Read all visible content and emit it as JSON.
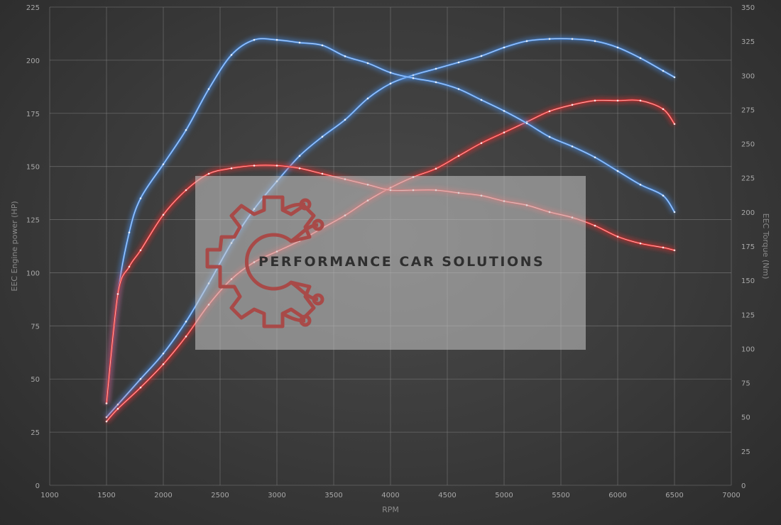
{
  "chart_data": {
    "type": "line",
    "xlabel": "RPM",
    "ylabel_left": "EEC Engine power (HP)",
    "ylabel_right": "EEC Torque (Nm)",
    "xlim": [
      1000,
      7000
    ],
    "ylim_left": [
      0,
      225
    ],
    "ylim_right": [
      0,
      350
    ],
    "x_ticks": [
      1000,
      1500,
      2000,
      2500,
      3000,
      3500,
      4000,
      4500,
      5000,
      5500,
      6000,
      6500,
      7000
    ],
    "y_left_ticks": [
      0,
      25,
      50,
      75,
      100,
      125,
      150,
      175,
      200,
      225
    ],
    "y_right_ticks": [
      0,
      25,
      50,
      75,
      100,
      125,
      150,
      175,
      200,
      225,
      250,
      275,
      300,
      325,
      350
    ],
    "grid": true,
    "series": [
      {
        "axis": "left",
        "color": "#4a8fe8",
        "x": [
          1500,
          1600,
          1800,
          2000,
          2200,
          2400,
          2600,
          2800,
          3000,
          3200,
          3400,
          3600,
          3800,
          4000,
          4200,
          4400,
          4600,
          4800,
          5000,
          5200,
          5400,
          5600,
          5800,
          6000,
          6200,
          6400,
          6500
        ],
        "y": [
          32,
          38,
          50,
          62,
          77,
          95,
          114,
          130,
          143,
          155,
          164,
          172,
          182,
          189,
          193,
          196,
          199,
          202,
          206,
          209,
          210,
          210,
          209,
          206,
          201,
          195,
          192
        ]
      },
      {
        "axis": "left",
        "color": "#e83030",
        "x": [
          1500,
          1600,
          1800,
          2000,
          2200,
          2400,
          2600,
          2800,
          3000,
          3200,
          3400,
          3600,
          3800,
          4000,
          4200,
          4400,
          4600,
          4800,
          5000,
          5200,
          5400,
          5600,
          5800,
          6000,
          6200,
          6400,
          6500
        ],
        "y": [
          30,
          36,
          46,
          57,
          70,
          85,
          97,
          105,
          110,
          115,
          121,
          127,
          134,
          140,
          145,
          149,
          155,
          161,
          166,
          171,
          176,
          179,
          181,
          181,
          181,
          177,
          170
        ]
      },
      {
        "axis": "right",
        "color": "#4a8fe8",
        "x": [
          1500,
          1600,
          1700,
          1800,
          2000,
          2200,
          2400,
          2600,
          2800,
          3000,
          3200,
          3400,
          3600,
          3800,
          4000,
          4200,
          4400,
          4600,
          4800,
          5000,
          5200,
          5400,
          5600,
          5800,
          6000,
          6200,
          6400,
          6500
        ],
        "y": [
          60,
          140,
          185,
          210,
          235,
          260,
          290,
          315,
          326,
          326,
          324,
          322,
          314,
          309,
          302,
          298,
          295,
          290,
          282,
          274,
          265,
          255,
          248,
          240,
          230,
          220,
          212,
          200
        ]
      },
      {
        "axis": "right",
        "color": "#e83030",
        "x": [
          1500,
          1600,
          1700,
          1800,
          2000,
          2200,
          2400,
          2600,
          2800,
          3000,
          3200,
          3400,
          3600,
          3800,
          4000,
          4200,
          4400,
          4600,
          4800,
          5000,
          5200,
          5400,
          5600,
          5800,
          6000,
          6200,
          6400,
          6500
        ],
        "y": [
          60,
          140,
          160,
          172,
          198,
          216,
          228,
          232,
          234,
          234,
          232,
          228,
          224,
          220,
          216,
          216,
          216,
          214,
          212,
          208,
          205,
          200,
          196,
          190,
          182,
          177,
          174,
          172
        ]
      }
    ]
  },
  "watermark": {
    "text": "PERFORMANCE CAR SOLUTIONS",
    "logo": "gear-circuit-icon"
  }
}
